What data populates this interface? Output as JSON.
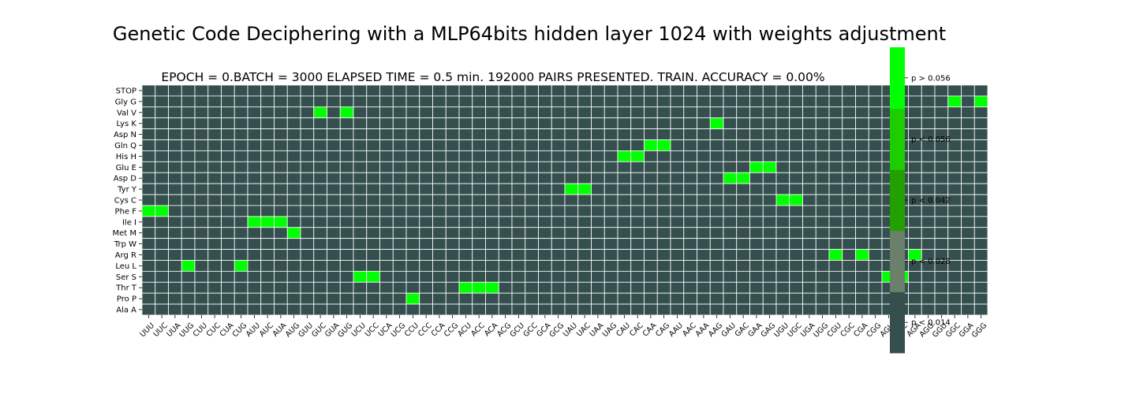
{
  "title": "Genetic Code Deciphering with a MLP64bits hidden layer 1024 with weights adjustment",
  "subtitle": "EPOCH =  0.BATCH = 3000 ELAPSED TIME = 0.5 min.   192000 PAIRS PRESENTED.  TRAIN. ACCURACY = 0.00%",
  "chart_data": {
    "type": "heatmap",
    "title": "Genetic Code Deciphering with a MLP64bits hidden layer 1024 with weights adjustment",
    "subtitle": "EPOCH =  0.BATCH = 3000 ELAPSED TIME = 0.5 min.   192000 PAIRS PRESENTED.  TRAIN. ACCURACY = 0.00%",
    "rows": [
      "STOP",
      "Gly G",
      "Val V",
      "Lys K",
      "Asp N",
      "Gln Q",
      "His H",
      "Glu E",
      "Asp D",
      "Tyr Y",
      "Cys C",
      "Phe F",
      "Ile I",
      "Met M",
      "Trp W",
      "Arg R",
      "Leu L",
      "Ser S",
      "Thr T",
      "Pro P",
      "Ala A"
    ],
    "columns": [
      "UUU",
      "UUC",
      "UUA",
      "UUG",
      "CUU",
      "CUC",
      "CUA",
      "CUG",
      "AUU",
      "AUC",
      "AUA",
      "AUG",
      "GUU",
      "GUC",
      "GUA",
      "GUG",
      "UCU",
      "UCC",
      "UCA",
      "UCG",
      "CCU",
      "CCC",
      "CCA",
      "CCG",
      "ACU",
      "ACC",
      "ACA",
      "ACG",
      "GCU",
      "GCC",
      "GCA",
      "GCG",
      "UAU",
      "UAC",
      "UAA",
      "UAG",
      "CAU",
      "CAC",
      "CAA",
      "CAG",
      "AAU",
      "AAC",
      "AAA",
      "AAG",
      "GAU",
      "GAC",
      "GAA",
      "GAG",
      "UGU",
      "UGC",
      "UGA",
      "UGG",
      "CGU",
      "CGC",
      "CGA",
      "CGG",
      "AGU",
      "AGC",
      "AGA",
      "AGG",
      "GGU",
      "GGC",
      "GGA",
      "GGG"
    ],
    "background_level": 0,
    "high_cells": [
      {
        "row": "Gly G",
        "col": "GGC"
      },
      {
        "row": "Gly G",
        "col": "GGG"
      },
      {
        "row": "Val V",
        "col": "GUC"
      },
      {
        "row": "Val V",
        "col": "GUG"
      },
      {
        "row": "Lys K",
        "col": "AAG"
      },
      {
        "row": "Gln Q",
        "col": "CAA"
      },
      {
        "row": "Gln Q",
        "col": "CAG"
      },
      {
        "row": "His H",
        "col": "CAU"
      },
      {
        "row": "His H",
        "col": "CAC"
      },
      {
        "row": "Glu E",
        "col": "GAA"
      },
      {
        "row": "Glu E",
        "col": "GAG"
      },
      {
        "row": "Asp D",
        "col": "GAU"
      },
      {
        "row": "Asp D",
        "col": "GAC"
      },
      {
        "row": "Tyr Y",
        "col": "UAU"
      },
      {
        "row": "Tyr Y",
        "col": "UAC"
      },
      {
        "row": "Cys C",
        "col": "UGU"
      },
      {
        "row": "Cys C",
        "col": "UGC"
      },
      {
        "row": "Phe F",
        "col": "UUU"
      },
      {
        "row": "Phe F",
        "col": "UUC"
      },
      {
        "row": "Ile I",
        "col": "AUU"
      },
      {
        "row": "Ile I",
        "col": "AUC"
      },
      {
        "row": "Ile I",
        "col": "AUA"
      },
      {
        "row": "Met M",
        "col": "AUG"
      },
      {
        "row": "Arg R",
        "col": "CGU"
      },
      {
        "row": "Arg R",
        "col": "CGA"
      },
      {
        "row": "Arg R",
        "col": "AGA"
      },
      {
        "row": "Leu L",
        "col": "UUG"
      },
      {
        "row": "Leu L",
        "col": "CUG"
      },
      {
        "row": "Ser S",
        "col": "UCU"
      },
      {
        "row": "Ser S",
        "col": "UCC"
      },
      {
        "row": "Ser S",
        "col": "AGU"
      },
      {
        "row": "Ser S",
        "col": "AGC"
      },
      {
        "row": "Thr T",
        "col": "ACU"
      },
      {
        "row": "Thr T",
        "col": "ACC"
      },
      {
        "row": "Thr T",
        "col": "ACA"
      },
      {
        "row": "Pro P",
        "col": "CCU"
      }
    ],
    "colorbar": {
      "levels": [
        {
          "label": "p < 0.014",
          "color": "#354f4f"
        },
        {
          "label": "p < 0.028",
          "color": "#6b806b"
        },
        {
          "label": "p < 0.042",
          "color": "#22a000"
        },
        {
          "label": "p < 0.056",
          "color": "#1ecd00"
        },
        {
          "label": "p > 0.056",
          "color": "#00ff00"
        }
      ]
    },
    "grid": true,
    "gridline_color": "#ffffff"
  }
}
